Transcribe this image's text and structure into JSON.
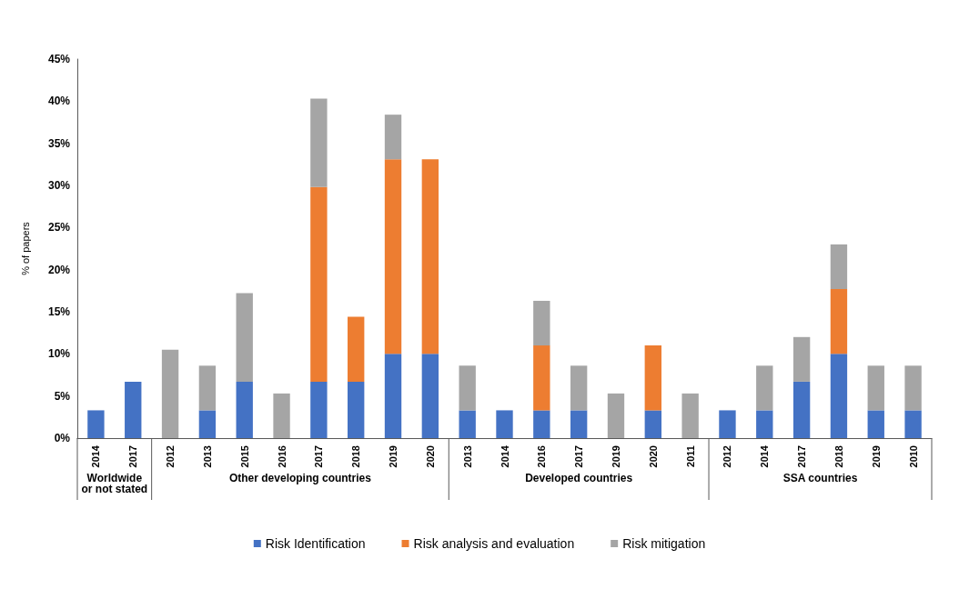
{
  "chart_data": {
    "type": "bar",
    "stacked": true,
    "ylabel": "% of papers",
    "categories": [
      "2014",
      "2017",
      "2012",
      "2013",
      "2015",
      "2016",
      "2017",
      "2018",
      "2019",
      "2020",
      "2013",
      "2014",
      "2016",
      "2017",
      "2019",
      "2020",
      "2011",
      "2012",
      "2014",
      "2017",
      "2018",
      "2019",
      "2010"
    ],
    "series": [
      {
        "name": "Risk Identification",
        "color": "#4472c4",
        "values": [
          3.3,
          6.7,
          null,
          3.3,
          6.7,
          null,
          6.7,
          6.7,
          10,
          10,
          3.3,
          3.3,
          3.3,
          3.3,
          null,
          3.3,
          null,
          3.3,
          3.3,
          6.7,
          10,
          3.3,
          3.3
        ]
      },
      {
        "name": "Risk analysis and evaluation",
        "color": "#ed7d31",
        "values": [
          null,
          null,
          null,
          null,
          null,
          null,
          23.1,
          7.7,
          23.1,
          23.1,
          null,
          null,
          7.7,
          null,
          null,
          7.7,
          null,
          null,
          null,
          null,
          7.7,
          null,
          null
        ]
      },
      {
        "name": "Risk mitigation",
        "color": "#a5a5a5",
        "values": [
          null,
          null,
          10.5,
          5.3,
          10.5,
          5.3,
          10.5,
          null,
          5.3,
          null,
          5.3,
          null,
          5.3,
          5.3,
          5.3,
          null,
          5.3,
          null,
          5.3,
          5.3,
          5.3,
          5.3,
          5.3
        ]
      }
    ],
    "ylim": [
      0,
      45
    ],
    "yticks": [
      {
        "value": 0,
        "label": "0%"
      },
      {
        "value": 5,
        "label": "5%"
      },
      {
        "value": 10,
        "label": "10%"
      },
      {
        "value": 15,
        "label": "15%"
      },
      {
        "value": 20,
        "label": "20%"
      },
      {
        "value": 25,
        "label": "25%"
      },
      {
        "value": 30,
        "label": "30%"
      },
      {
        "value": 35,
        "label": "35%"
      },
      {
        "value": 40,
        "label": "40%"
      },
      {
        "value": 45,
        "label": "45%"
      }
    ],
    "annotations": [
      "Worldwide\nor not stated",
      "Other developing countries",
      "Developed countries",
      "SSA countries"
    ],
    "grid": false,
    "legend": "bottom"
  }
}
